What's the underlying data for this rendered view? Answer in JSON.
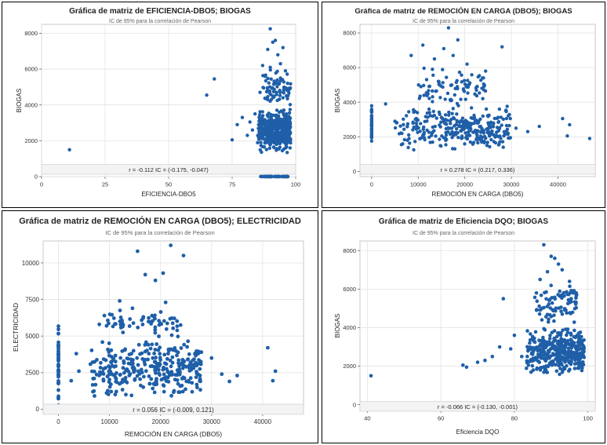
{
  "colors": {
    "point": "#1f5fa8",
    "grid": "#e3e3e3",
    "frame": "#bdbdbd",
    "panel_border": "#000000"
  },
  "chart_data": [
    {
      "type": "scatter",
      "title": "Gráfica de matriz de EFICIENCIA-DBO5; BIOGAS",
      "subtitle": "IC de 95% para la correlación de Pearson",
      "xlabel": "EFICIENCIA-DBO5",
      "ylabel": "BIOGAS",
      "xlim": [
        0,
        100
      ],
      "ylim": [
        0,
        8500
      ],
      "xticks": [
        "0",
        "25",
        "50",
        "75",
        "100"
      ],
      "xtick_values": [
        0,
        25,
        50,
        75,
        100
      ],
      "yticks": [
        "0",
        "2000",
        "4000",
        "6000",
        "8000"
      ],
      "ytick_values": [
        0,
        2000,
        4000,
        6000,
        8000
      ],
      "correlation": "r = -0.112   IC = (-0.175, -0.047)",
      "points": {
        "explicit": [
          [
            11,
            1500
          ],
          [
            65,
            4550
          ],
          [
            68,
            5450
          ],
          [
            75,
            2050
          ],
          [
            77,
            2900
          ],
          [
            79,
            3300
          ],
          [
            81,
            2300
          ],
          [
            82,
            3050
          ],
          [
            84,
            3500
          ],
          [
            83,
            2600
          ],
          [
            86,
            2900
          ],
          [
            87,
            6200
          ],
          [
            89,
            7100
          ],
          [
            90,
            8250
          ],
          [
            92,
            7600
          ],
          [
            95,
            7200
          ],
          [
            93,
            6800
          ],
          [
            91,
            7500
          ],
          [
            94,
            6300
          ],
          [
            88,
            5600
          ],
          [
            96,
            5900
          ],
          [
            92,
            5200
          ],
          [
            90,
            6100
          ],
          [
            97,
            4800
          ],
          [
            86,
            4700
          ],
          [
            94,
            5500
          ],
          [
            89,
            4300
          ],
          [
            95,
            4400
          ]
        ],
        "clusters": [
          {
            "n": 420,
            "x": [
              85,
              98
            ],
            "y": [
              1300,
              3800
            ],
            "seed": 11
          },
          {
            "n": 70,
            "x": [
              87,
              98
            ],
            "y": [
              3800,
              6000
            ],
            "seed": 12
          },
          {
            "n": 55,
            "x": [
              86,
              97
            ],
            "y": [
              0,
              0
            ],
            "seed": 13
          }
        ]
      }
    },
    {
      "type": "scatter",
      "title": "Gráfica de matriz de REMOCIÓN EN CARGA (DBO5); BIOGAS",
      "subtitle": "IC de 95% para la correlación de Pearson",
      "xlabel": "REMOCIÓN EN CARGA (DBO5)",
      "ylabel": "BIOGAS",
      "xlim": [
        -2500,
        48000
      ],
      "ylim": [
        -300,
        8500
      ],
      "xticks": [
        "0",
        "10000",
        "20000",
        "30000",
        "40000"
      ],
      "xtick_values": [
        0,
        10000,
        20000,
        30000,
        40000
      ],
      "yticks": [
        "0",
        "2000",
        "4000",
        "6000",
        "8000"
      ],
      "ytick_values": [
        0,
        2000,
        4000,
        6000,
        8000
      ],
      "correlation": "r = 0.278   IC = (0.217, 0.336)",
      "points": {
        "explicit": [
          [
            0,
            0
          ],
          [
            41000,
            3050
          ],
          [
            42500,
            2700
          ],
          [
            46800,
            1900
          ],
          [
            42000,
            2050
          ],
          [
            28000,
            7200
          ],
          [
            16500,
            8300
          ],
          [
            18500,
            7600
          ],
          [
            15500,
            7100
          ],
          [
            17500,
            6700
          ],
          [
            13500,
            6500
          ],
          [
            11000,
            7300
          ],
          [
            20500,
            6200
          ],
          [
            24000,
            5400
          ],
          [
            8500,
            6700
          ],
          [
            31000,
            2500
          ],
          [
            33500,
            2300
          ],
          [
            36000,
            2600
          ],
          [
            3000,
            3900
          ],
          [
            5000,
            2900
          ],
          [
            6500,
            2200
          ]
        ],
        "clusters": [
          {
            "n": 320,
            "x": [
              5000,
              30000
            ],
            "y": [
              1200,
              3800
            ],
            "seed": 21
          },
          {
            "n": 85,
            "x": [
              10000,
              25000
            ],
            "y": [
              3800,
              6000
            ],
            "seed": 22
          },
          {
            "n": 40,
            "x": [
              0,
              0
            ],
            "y": [
              1500,
              4200
            ],
            "seed": 23
          }
        ]
      }
    },
    {
      "type": "scatter",
      "title": "Gráfica de matriz de REMOCIÓN EN CARGA (DBO5); ELECTRICIDAD",
      "subtitle": "IC de 95% para la correlación de Pearson",
      "xlabel": "REMOCIÓN EN CARGA (DBO5)",
      "ylabel": "ELECTRICIDAD",
      "xlim": [
        -3000,
        48000
      ],
      "ylim": [
        -300,
        11500
      ],
      "xticks": [
        "0",
        "10000",
        "20000",
        "30000",
        "40000"
      ],
      "xtick_values": [
        0,
        10000,
        20000,
        30000,
        40000
      ],
      "yticks": [
        "0",
        "2500",
        "5000",
        "7500",
        "10000"
      ],
      "ytick_values": [
        0,
        2500,
        5000,
        7500,
        10000
      ],
      "correlation": "r = 0.056   IC = (-0.009, 0.121)",
      "points": {
        "explicit": [
          [
            15500,
            10800
          ],
          [
            22000,
            11200
          ],
          [
            24500,
            10500
          ],
          [
            17000,
            9200
          ],
          [
            19000,
            8800
          ],
          [
            20500,
            9300
          ],
          [
            12000,
            7400
          ],
          [
            14500,
            6900
          ],
          [
            21000,
            7300
          ],
          [
            9000,
            6400
          ],
          [
            8000,
            5800
          ],
          [
            41000,
            4200
          ],
          [
            42500,
            2600
          ],
          [
            42000,
            1950
          ],
          [
            46500,
            0
          ],
          [
            32000,
            2400
          ],
          [
            33500,
            1900
          ],
          [
            35000,
            2300
          ],
          [
            28000,
            3900
          ],
          [
            30000,
            3500
          ],
          [
            2500,
            1950
          ],
          [
            4000,
            2600
          ],
          [
            3500,
            3800
          ]
        ],
        "clusters": [
          {
            "n": 320,
            "x": [
              6000,
              28000
            ],
            "y": [
              700,
              4800
            ],
            "seed": 31
          },
          {
            "n": 60,
            "x": [
              9000,
              24000
            ],
            "y": [
              4800,
              7000
            ],
            "seed": 32
          },
          {
            "n": 80,
            "x": [
              6000,
              30000
            ],
            "y": [
              0,
              0
            ],
            "seed": 33
          },
          {
            "n": 45,
            "x": [
              0,
              0
            ],
            "y": [
              0,
              6200
            ],
            "seed": 34
          }
        ]
      }
    },
    {
      "type": "scatter",
      "title": "Gráfica de matriz de Eficiencia DQO; BIOGAS",
      "subtitle": "IC de 95% para la correlación de Pearson",
      "xlabel": "Eficiencia DQO",
      "ylabel": "BIOGAS",
      "xlim": [
        38,
        102
      ],
      "ylim": [
        -300,
        8500
      ],
      "xticks": [
        "40",
        "60",
        "80",
        "100"
      ],
      "xtick_values": [
        40,
        60,
        80,
        100
      ],
      "yticks": [
        "0",
        "2000",
        "4000",
        "6000",
        "8000"
      ],
      "ytick_values": [
        0,
        2000,
        4000,
        6000,
        8000
      ],
      "correlation": "r = -0.066   IC = (-0.130, -0.001)",
      "points": {
        "explicit": [
          [
            41,
            1500
          ],
          [
            66,
            2050
          ],
          [
            67,
            1950
          ],
          [
            70,
            2200
          ],
          [
            72,
            2300
          ],
          [
            74,
            2500
          ],
          [
            76,
            3000
          ],
          [
            77,
            5500
          ],
          [
            79,
            2900
          ],
          [
            80,
            3600
          ],
          [
            82,
            2500
          ],
          [
            88,
            8300
          ],
          [
            90,
            7700
          ],
          [
            91,
            7600
          ],
          [
            92,
            7300
          ],
          [
            89,
            6900
          ],
          [
            93,
            7000
          ],
          [
            87,
            6500
          ],
          [
            95,
            6400
          ],
          [
            96,
            5800
          ],
          [
            86,
            5800
          ]
        ],
        "clusters": [
          {
            "n": 380,
            "x": [
              83,
              99
            ],
            "y": [
              1500,
              4000
            ],
            "seed": 41
          },
          {
            "n": 80,
            "x": [
              85,
              97
            ],
            "y": [
              4000,
              6400
            ],
            "seed": 42
          },
          {
            "n": 50,
            "x": [
              84,
              96
            ],
            "y": [
              0,
              0
            ],
            "seed": 43
          }
        ]
      }
    }
  ]
}
